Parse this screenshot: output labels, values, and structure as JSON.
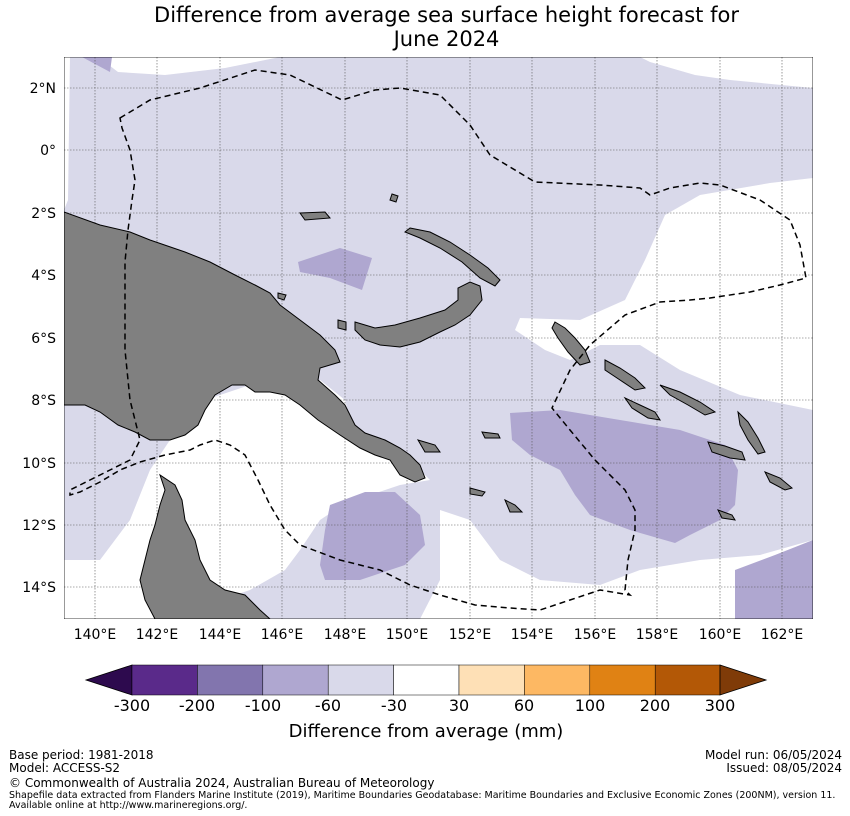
{
  "title_line1": "Difference from average sea surface height forecast for",
  "title_line2": "June 2024",
  "map": {
    "lat_ticks": [
      "2°N",
      "0°",
      "2°S",
      "4°S",
      "6°S",
      "8°S",
      "10°S",
      "12°S",
      "14°S"
    ],
    "lon_ticks": [
      "140°E",
      "142°E",
      "144°E",
      "146°E",
      "148°E",
      "150°E",
      "152°E",
      "154°E",
      "156°E",
      "158°E",
      "160°E",
      "162°E"
    ],
    "colors": {
      "land": "#808080",
      "anomaly_neg30_neg60": "#d9d9ea",
      "anomaly_neg60_neg100": "#afa7d0",
      "neutral": "#ffffff"
    }
  },
  "colorbar": {
    "title": "Difference from average (mm)",
    "tick_labels": [
      "-300",
      "-200",
      "-100",
      "-60",
      "-30",
      "30",
      "60",
      "100",
      "200",
      "300"
    ],
    "colors": [
      "#2d0a4e",
      "#5a2a8a",
      "#8275ae",
      "#afa7d0",
      "#d9d9ea",
      "#ffffff",
      "#fee0b6",
      "#fdb863",
      "#e08214",
      "#b35806",
      "#7f3b08"
    ]
  },
  "footer": {
    "base_period": "Base period: 1981-2018",
    "model": "Model: ACCESS-S2",
    "model_run": "Model run: 06/05/2024",
    "issued": "Issued: 08/05/2024",
    "copyright": "© Commonwealth of Australia 2024, Australian Bureau of Meteorology",
    "shapefile_line1": "Shapefile data extracted from Flanders Marine Institute (2019), Maritime Boundaries Geodatabase: Maritime Boundaries and Exclusive Economic Zones (200NM), version 11.",
    "shapefile_line2": "Available online at http://www.marineregions.org/."
  }
}
